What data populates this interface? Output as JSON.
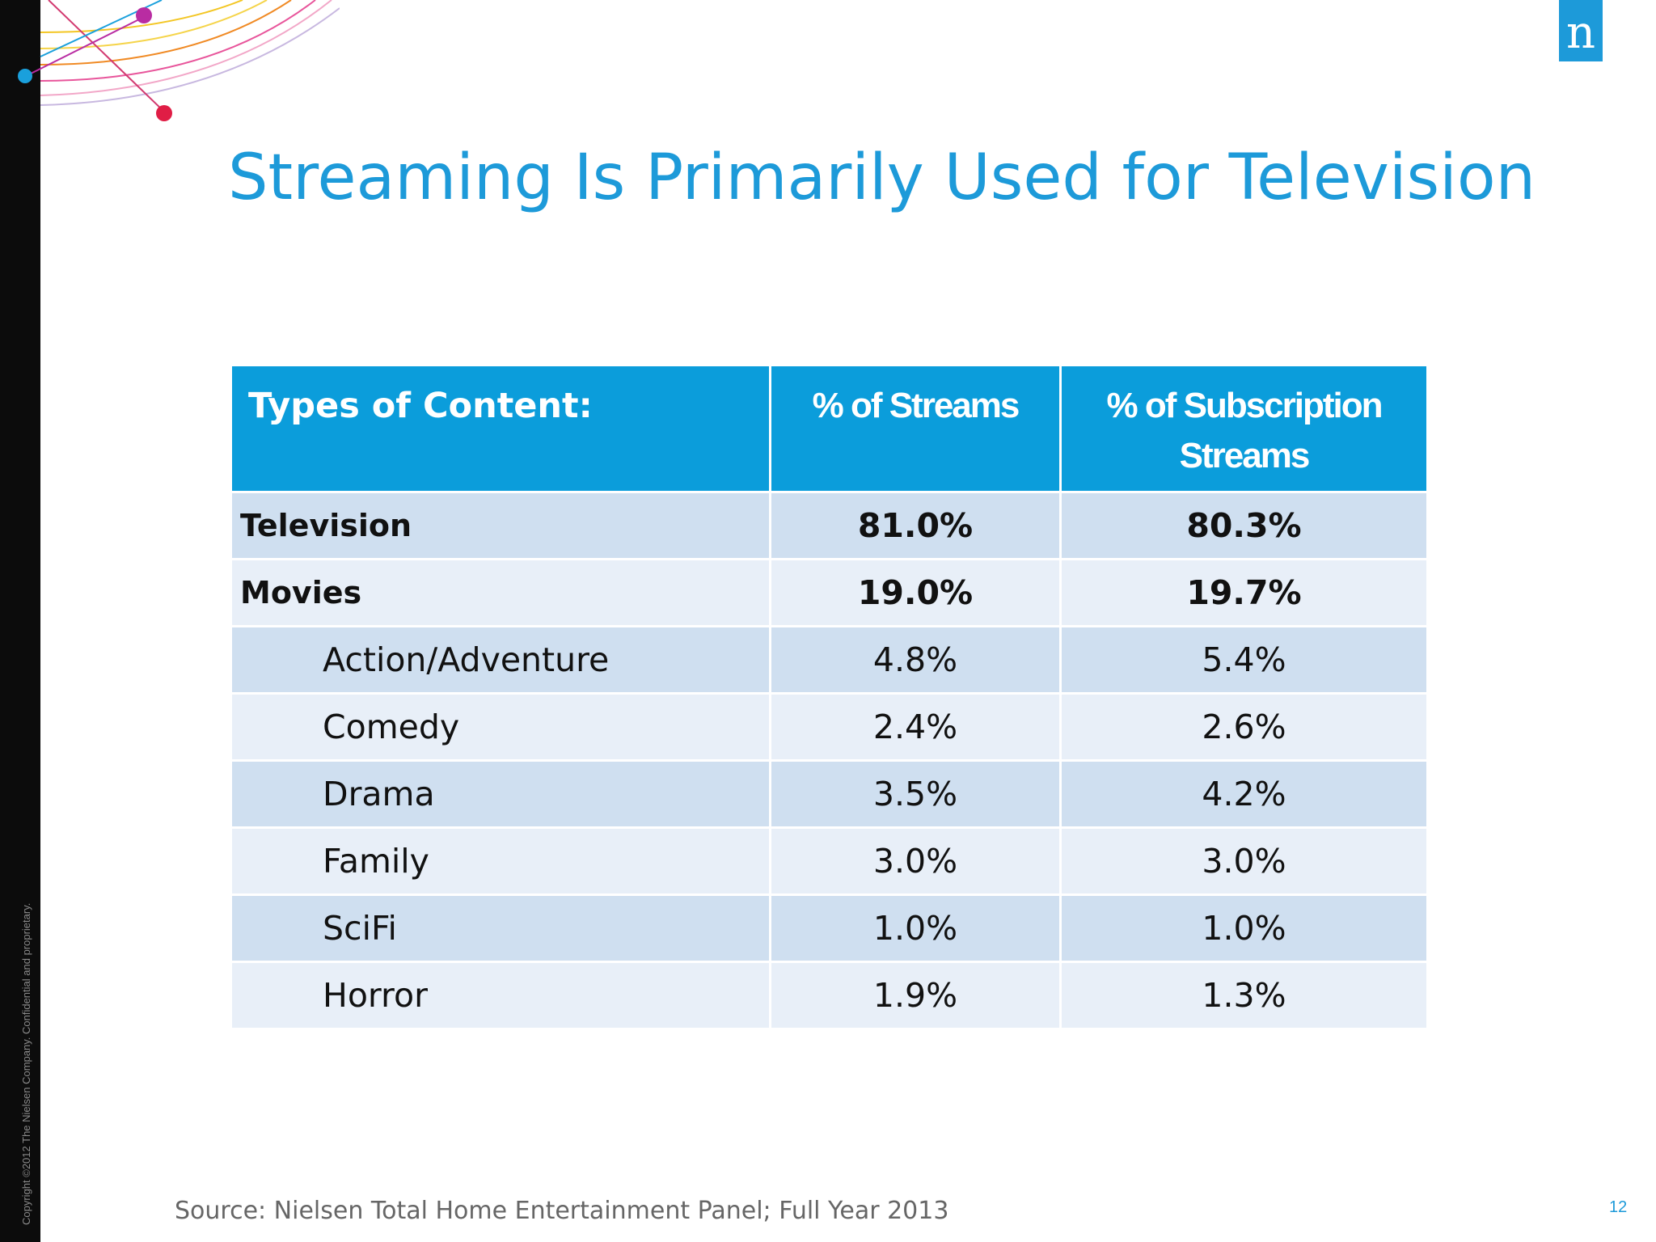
{
  "slide": {
    "title": "Streaming Is Primarily Used for Television",
    "copyright": "Copyright ©2012 The Nielsen Company. Confidential and proprietary.",
    "logo_letter": "n",
    "source": "Source: Nielsen Total Home Entertainment Panel; Full Year 2013",
    "page_number": "12"
  },
  "colors": {
    "title_blue": "#1d9ad9",
    "header_blue": "#0b9ddb",
    "row_dark": "#cfdff0",
    "row_light": "#e8eff8",
    "arc_yellow": "#f3c623",
    "arc_pink": "#e8559b",
    "arc_orange": "#f08a24",
    "dot_blue": "#1aa0dc",
    "dot_purple": "#b92ca2",
    "dot_red": "#e01d45"
  },
  "table": {
    "headers": [
      "Types of Content:",
      "% of Streams",
      "% of Subscription Streams"
    ],
    "rows": [
      {
        "category": "Television",
        "streams": "81.0%",
        "subscription": "80.3%",
        "level": "main"
      },
      {
        "category": "Movies",
        "streams": "19.0%",
        "subscription": "19.7%",
        "level": "main"
      },
      {
        "category": "Action/Adventure",
        "streams": "4.8%",
        "subscription": "5.4%",
        "level": "sub"
      },
      {
        "category": "Comedy",
        "streams": "2.4%",
        "subscription": "2.6%",
        "level": "sub"
      },
      {
        "category": "Drama",
        "streams": "3.5%",
        "subscription": "4.2%",
        "level": "sub"
      },
      {
        "category": "Family",
        "streams": "3.0%",
        "subscription": "3.0%",
        "level": "sub"
      },
      {
        "category": "SciFi",
        "streams": "1.0%",
        "subscription": "1.0%",
        "level": "sub"
      },
      {
        "category": "Horror",
        "streams": "1.9%",
        "subscription": "1.3%",
        "level": "sub"
      }
    ]
  }
}
